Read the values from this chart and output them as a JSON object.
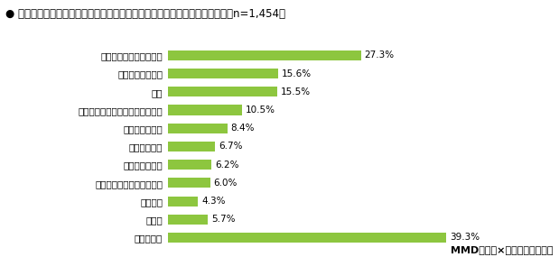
{
  "title": "● 新型コロナウイルスの影響によって在宅時間が増えたことから始めたこと（n=1,454）",
  "categories": [
    "部屋の片づけ・模様替え",
    "自炊、お菓子作り",
    "運動",
    "副業、ギグワーク、ポイント活動",
    "学習、資格取得",
    "ハンドメイド",
    "資産運用・形成",
    "家族や友人・知人の手伝い",
    "転職活動",
    "その他",
    "とくにない"
  ],
  "values": [
    27.3,
    15.6,
    15.5,
    10.5,
    8.4,
    6.7,
    6.2,
    6.0,
    4.3,
    5.7,
    39.3
  ],
  "bar_color": "#8DC63F",
  "background_color": "#ffffff",
  "text_color": "#000000",
  "watermark": "MMD研究所×スマートアンサー",
  "xlim": [
    0,
    45
  ],
  "bar_height": 0.55,
  "title_fontsize": 8.5,
  "label_fontsize": 7.5,
  "value_fontsize": 7.5,
  "watermark_fontsize": 8
}
